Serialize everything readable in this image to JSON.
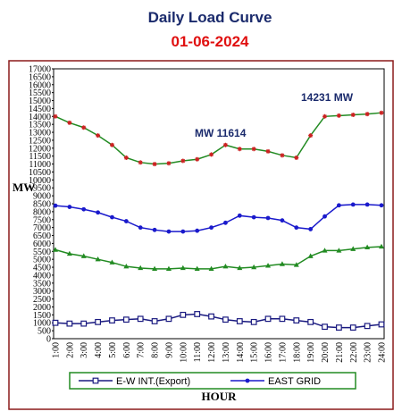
{
  "chart_data": {
    "type": "line",
    "title": "Daily Load Curve",
    "subtitle": "01-06-2024",
    "ylabel": "MW",
    "xlabel": "HOUR",
    "annotations": [
      "MW 11614",
      "14231 MW"
    ],
    "categories": [
      "1:00",
      "2:00",
      "3:00",
      "4:00",
      "5:00",
      "6:00",
      "7:00",
      "8:00",
      "9:00",
      "10:00",
      "11:00",
      "12:00",
      "13:00",
      "14:00",
      "15:00",
      "16:00",
      "17:00",
      "18:00",
      "19:00",
      "20:00",
      "21:00",
      "22:00",
      "23:00",
      "24:00"
    ],
    "series": [
      {
        "color": "#cc2222",
        "line_color": "#228b22",
        "marker": "star",
        "values": [
          14000,
          13600,
          13300,
          12800,
          12200,
          11400,
          11100,
          11000,
          11050,
          11200,
          11300,
          11600,
          12200,
          11950,
          11950,
          11800,
          11550,
          11400,
          12800,
          14000,
          14050,
          14100,
          14150,
          14231
        ]
      },
      {
        "name": "EAST GRID",
        "color": "#1a1acc",
        "marker": "circle",
        "values": [
          8380,
          8300,
          8150,
          7950,
          7650,
          7400,
          7000,
          6850,
          6750,
          6750,
          6800,
          7000,
          7300,
          7750,
          7650,
          7600,
          7450,
          7000,
          6900,
          7700,
          8400,
          8450,
          8450,
          8400
        ]
      },
      {
        "color": "#228b22",
        "marker": "triangle",
        "values": [
          5600,
          5350,
          5200,
          5000,
          4800,
          4550,
          4450,
          4400,
          4400,
          4450,
          4400,
          4400,
          4550,
          4450,
          4500,
          4600,
          4700,
          4650,
          5200,
          5550,
          5550,
          5650,
          5750,
          5800
        ]
      },
      {
        "name": "E-W INT.(Export)",
        "color": "#1a1a80",
        "marker": "square",
        "values": [
          1000,
          950,
          950,
          1050,
          1150,
          1200,
          1250,
          1100,
          1250,
          1500,
          1550,
          1400,
          1200,
          1100,
          1050,
          1250,
          1250,
          1150,
          1050,
          750,
          700,
          700,
          800,
          900
        ]
      }
    ],
    "ylim": [
      0,
      17000
    ],
    "yticks": [
      0,
      500,
      1000,
      1500,
      2000,
      2500,
      3000,
      3500,
      4000,
      4500,
      5000,
      5500,
      6000,
      6500,
      7000,
      7500,
      8000,
      8500,
      9000,
      9500,
      10000,
      10500,
      11000,
      11500,
      12000,
      12500,
      13000,
      13500,
      14000,
      14500,
      15000,
      15500,
      16000,
      16500,
      17000
    ],
    "grid": false,
    "legend": "bottom"
  }
}
